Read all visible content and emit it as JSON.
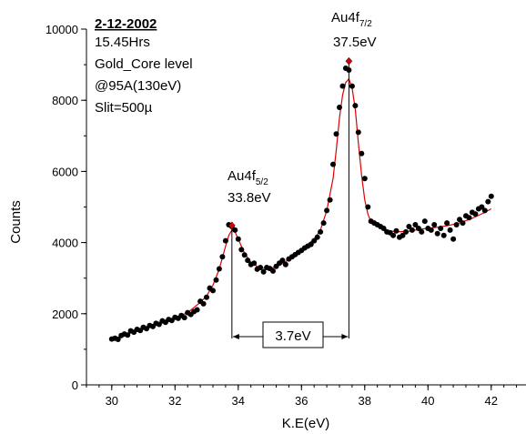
{
  "chart_data": {
    "type": "scatter",
    "xlabel": "K.E(eV)",
    "ylabel": "Counts",
    "xlim": [
      29.2,
      43.1
    ],
    "ylim": [
      0,
      10000
    ],
    "x_ticks": [
      30,
      32,
      34,
      36,
      38,
      40,
      42
    ],
    "y_ticks": [
      0,
      2000,
      4000,
      6000,
      8000,
      10000
    ],
    "x_tick_labels": [
      "30",
      "32",
      "34",
      "36",
      "38",
      "40",
      "42"
    ],
    "y_tick_labels": [
      "0",
      "2000",
      "4000",
      "6000",
      "8000",
      "10000"
    ],
    "grid": false,
    "info_block": {
      "date": "2-12-2002",
      "lines": [
        "15.45Hrs",
        "Gold_Core level",
        "@95A(130eV)",
        "Slit=500µ"
      ]
    },
    "peaks": [
      {
        "label_base": "Au4f",
        "label_sub": "5/2",
        "energy_label": "33.8eV",
        "x": 33.8,
        "y": 4480
      },
      {
        "label_base": "Au4f",
        "label_sub": "7/2",
        "energy_label": "37.5eV",
        "x": 37.5,
        "y": 9100
      }
    ],
    "separation_label": "3.7eV",
    "colors": {
      "data_points": "#000000",
      "fit_line": "#dd0000",
      "peak_marker": "#dd0000"
    },
    "series": [
      {
        "kind": "measured",
        "points": [
          [
            30.0,
            1290
          ],
          [
            30.1,
            1310
          ],
          [
            30.2,
            1280
          ],
          [
            30.3,
            1390
          ],
          [
            30.4,
            1430
          ],
          [
            30.5,
            1400
          ],
          [
            30.6,
            1520
          ],
          [
            30.7,
            1480
          ],
          [
            30.8,
            1560
          ],
          [
            30.9,
            1530
          ],
          [
            31.0,
            1620
          ],
          [
            31.1,
            1580
          ],
          [
            31.2,
            1670
          ],
          [
            31.3,
            1640
          ],
          [
            31.4,
            1730
          ],
          [
            31.5,
            1700
          ],
          [
            31.6,
            1800
          ],
          [
            31.7,
            1760
          ],
          [
            31.8,
            1840
          ],
          [
            31.9,
            1810
          ],
          [
            32.0,
            1900
          ],
          [
            32.1,
            1870
          ],
          [
            32.2,
            1950
          ],
          [
            32.3,
            1890
          ],
          [
            32.4,
            2030
          ],
          [
            32.5,
            1980
          ],
          [
            32.6,
            2060
          ],
          [
            32.7,
            2110
          ],
          [
            32.8,
            2350
          ],
          [
            32.9,
            2280
          ],
          [
            33.0,
            2460
          ],
          [
            33.1,
            2720
          ],
          [
            33.2,
            2650
          ],
          [
            33.3,
            2950
          ],
          [
            33.4,
            3260
          ],
          [
            33.5,
            3600
          ],
          [
            33.6,
            4050
          ],
          [
            33.7,
            4500
          ],
          [
            33.8,
            4450
          ],
          [
            33.9,
            4350
          ],
          [
            34.0,
            4100
          ],
          [
            34.1,
            3800
          ],
          [
            34.2,
            3650
          ],
          [
            34.3,
            3500
          ],
          [
            34.4,
            3380
          ],
          [
            34.5,
            3420
          ],
          [
            34.6,
            3250
          ],
          [
            34.7,
            3300
          ],
          [
            34.8,
            3180
          ],
          [
            34.9,
            3300
          ],
          [
            35.0,
            3270
          ],
          [
            35.1,
            3200
          ],
          [
            35.2,
            3330
          ],
          [
            35.3,
            3420
          ],
          [
            35.4,
            3500
          ],
          [
            35.5,
            3380
          ],
          [
            35.6,
            3540
          ],
          [
            35.7,
            3600
          ],
          [
            35.8,
            3660
          ],
          [
            35.9,
            3720
          ],
          [
            36.0,
            3780
          ],
          [
            36.1,
            3850
          ],
          [
            36.2,
            3900
          ],
          [
            36.3,
            3950
          ],
          [
            36.4,
            4050
          ],
          [
            36.5,
            4150
          ],
          [
            36.6,
            4300
          ],
          [
            36.7,
            4550
          ],
          [
            36.8,
            4900
          ],
          [
            36.9,
            5200
          ],
          [
            37.0,
            6200
          ],
          [
            37.1,
            7050
          ],
          [
            37.2,
            7800
          ],
          [
            37.3,
            8400
          ],
          [
            37.4,
            8900
          ],
          [
            37.5,
            8850
          ],
          [
            37.6,
            8400
          ],
          [
            37.7,
            7850
          ],
          [
            37.8,
            7100
          ],
          [
            37.9,
            6500
          ],
          [
            38.0,
            5800
          ],
          [
            38.1,
            5000
          ],
          [
            38.2,
            4600
          ],
          [
            38.3,
            4550
          ],
          [
            38.4,
            4500
          ],
          [
            38.5,
            4450
          ],
          [
            38.6,
            4400
          ],
          [
            38.7,
            4300
          ],
          [
            38.8,
            4280
          ],
          [
            38.9,
            4200
          ],
          [
            39.0,
            4330
          ],
          [
            39.1,
            4150
          ],
          [
            39.2,
            4200
          ],
          [
            39.3,
            4300
          ],
          [
            39.4,
            4450
          ],
          [
            39.5,
            4350
          ],
          [
            39.6,
            4500
          ],
          [
            39.7,
            4400
          ],
          [
            39.8,
            4300
          ],
          [
            39.9,
            4600
          ],
          [
            40.0,
            4400
          ],
          [
            40.1,
            4350
          ],
          [
            40.2,
            4500
          ],
          [
            40.3,
            4250
          ],
          [
            40.4,
            4400
          ],
          [
            40.5,
            4200
          ],
          [
            40.6,
            4550
          ],
          [
            40.7,
            4350
          ],
          [
            40.8,
            4100
          ],
          [
            40.9,
            4500
          ],
          [
            41.0,
            4650
          ],
          [
            41.1,
            4550
          ],
          [
            41.2,
            4750
          ],
          [
            41.3,
            4700
          ],
          [
            41.4,
            4850
          ],
          [
            41.5,
            4800
          ],
          [
            41.6,
            4950
          ],
          [
            41.7,
            5000
          ],
          [
            41.8,
            4900
          ],
          [
            41.9,
            5150
          ],
          [
            42.0,
            5300
          ]
        ]
      },
      {
        "kind": "fit",
        "points": [
          [
            30.0,
            1280
          ],
          [
            30.4,
            1390
          ],
          [
            30.8,
            1530
          ],
          [
            31.2,
            1650
          ],
          [
            31.6,
            1760
          ],
          [
            32.0,
            1880
          ],
          [
            32.4,
            2030
          ],
          [
            32.8,
            2320
          ],
          [
            33.0,
            2500
          ],
          [
            33.2,
            2800
          ],
          [
            33.4,
            3250
          ],
          [
            33.6,
            3900
          ],
          [
            33.7,
            4200
          ],
          [
            33.8,
            4350
          ],
          [
            33.9,
            4300
          ],
          [
            34.0,
            4100
          ],
          [
            34.2,
            3700
          ],
          [
            34.4,
            3450
          ],
          [
            34.6,
            3330
          ],
          [
            34.8,
            3280
          ],
          [
            35.0,
            3270
          ],
          [
            35.2,
            3320
          ],
          [
            35.4,
            3410
          ],
          [
            35.6,
            3520
          ],
          [
            35.8,
            3660
          ],
          [
            36.0,
            3800
          ],
          [
            36.2,
            3950
          ],
          [
            36.4,
            4100
          ],
          [
            36.6,
            4350
          ],
          [
            36.8,
            4900
          ],
          [
            37.0,
            5800
          ],
          [
            37.1,
            6600
          ],
          [
            37.2,
            7500
          ],
          [
            37.3,
            8150
          ],
          [
            37.4,
            8500
          ],
          [
            37.5,
            8600
          ],
          [
            37.6,
            8350
          ],
          [
            37.7,
            7750
          ],
          [
            37.8,
            6800
          ],
          [
            37.9,
            5900
          ],
          [
            38.0,
            5200
          ],
          [
            38.1,
            4800
          ],
          [
            38.2,
            4580
          ],
          [
            38.4,
            4450
          ],
          [
            38.6,
            4380
          ],
          [
            38.8,
            4330
          ],
          [
            39.0,
            4300
          ],
          [
            39.4,
            4320
          ],
          [
            39.8,
            4380
          ],
          [
            40.2,
            4420
          ],
          [
            40.6,
            4470
          ],
          [
            41.0,
            4550
          ],
          [
            41.4,
            4680
          ],
          [
            41.8,
            4850
          ],
          [
            42.0,
            4950
          ]
        ]
      }
    ]
  }
}
